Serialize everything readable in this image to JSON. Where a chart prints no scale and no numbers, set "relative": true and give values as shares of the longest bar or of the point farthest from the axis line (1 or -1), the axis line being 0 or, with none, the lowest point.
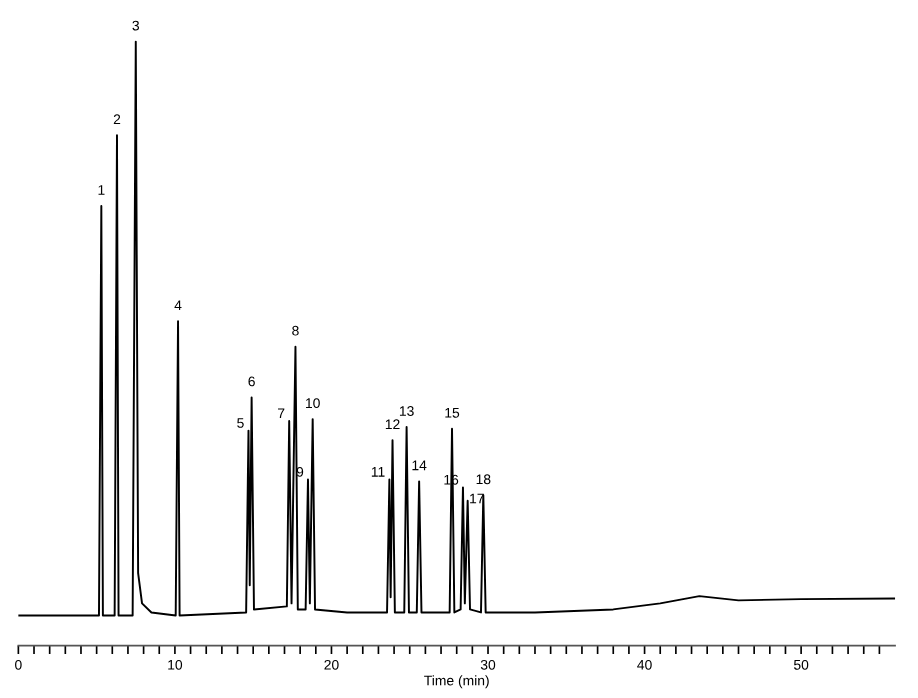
{
  "chart_data": {
    "type": "line",
    "relative": true,
    "xlabel": "Time (min)",
    "xlim": [
      0,
      56
    ],
    "xticks": [
      0,
      {
        "value": 1,
        "label": null
      },
      {
        "value": 2,
        "label": null
      },
      {
        "value": 3,
        "label": null
      },
      {
        "value": 4,
        "label": null
      },
      {
        "value": 5,
        "label": null
      },
      {
        "value": 6,
        "label": null
      },
      {
        "value": 7,
        "label": null
      },
      {
        "value": 8,
        "label": null
      },
      {
        "value": 9,
        "label": null
      },
      10,
      {
        "value": 11,
        "label": null
      },
      {
        "value": 12,
        "label": null
      },
      {
        "value": 13,
        "label": null
      },
      {
        "value": 14,
        "label": null
      },
      {
        "value": 15,
        "label": null
      },
      {
        "value": 16,
        "label": null
      },
      {
        "value": 17,
        "label": null
      },
      {
        "value": 18,
        "label": null
      },
      {
        "value": 19,
        "label": null
      },
      20,
      {
        "value": 21,
        "label": null
      },
      {
        "value": 22,
        "label": null
      },
      {
        "value": 23,
        "label": null
      },
      {
        "value": 24,
        "label": null
      },
      {
        "value": 25,
        "label": null
      },
      {
        "value": 26,
        "label": null
      },
      {
        "value": 27,
        "label": null
      },
      {
        "value": 28,
        "label": null
      },
      {
        "value": 29,
        "label": null
      },
      30,
      {
        "value": 31,
        "label": null
      },
      {
        "value": 32,
        "label": null
      },
      {
        "value": 33,
        "label": null
      },
      {
        "value": 34,
        "label": null
      },
      {
        "value": 35,
        "label": null
      },
      {
        "value": 36,
        "label": null
      },
      {
        "value": 37,
        "label": null
      },
      {
        "value": 38,
        "label": null
      },
      {
        "value": 39,
        "label": null
      },
      40,
      {
        "value": 41,
        "label": null
      },
      {
        "value": 42,
        "label": null
      },
      {
        "value": 43,
        "label": null
      },
      {
        "value": 44,
        "label": null
      },
      {
        "value": 45,
        "label": null
      },
      {
        "value": 46,
        "label": null
      },
      {
        "value": 47,
        "label": null
      },
      {
        "value": 48,
        "label": null
      },
      {
        "value": 49,
        "label": null
      },
      50,
      {
        "value": 51,
        "label": null
      },
      {
        "value": 52,
        "label": null
      },
      {
        "value": 53,
        "label": null
      },
      {
        "value": 54,
        "label": null
      },
      {
        "value": 55,
        "label": null
      }
    ],
    "grid": false,
    "legend": false,
    "marker": "none",
    "line_style": "solid",
    "series": [
      {
        "color": "#000000",
        "x": [
          0,
          5.15,
          5.3,
          5.4,
          6.15,
          6.3,
          6.4,
          7.3,
          7.5,
          7.65,
          7.9,
          8.5,
          10.05,
          10.2,
          10.3,
          14.55,
          14.7,
          14.78,
          14.9,
          15.05,
          17.15,
          17.3,
          17.45,
          17.7,
          17.85,
          18.35,
          18.5,
          18.62,
          18.8,
          18.95,
          21,
          23.55,
          23.7,
          23.78,
          23.9,
          24.05,
          24.65,
          24.8,
          24.95,
          25.45,
          25.6,
          25.75,
          27.55,
          27.7,
          27.85,
          28.25,
          28.4,
          28.52,
          28.7,
          28.85,
          29.55,
          29.7,
          29.85,
          33,
          38,
          41,
          43.5,
          46,
          50,
          56
        ],
        "values": [
          0.05,
          0.05,
          0.728,
          0.05,
          0.05,
          0.845,
          0.05,
          0.05,
          1.0,
          0.12,
          0.07,
          0.055,
          0.05,
          0.537,
          0.05,
          0.055,
          0.356,
          0.1,
          0.411,
          0.06,
          0.065,
          0.372,
          0.07,
          0.495,
          0.06,
          0.06,
          0.275,
          0.07,
          0.375,
          0.06,
          0.055,
          0.055,
          0.275,
          0.08,
          0.34,
          0.055,
          0.055,
          0.362,
          0.055,
          0.055,
          0.272,
          0.055,
          0.055,
          0.359,
          0.055,
          0.06,
          0.262,
          0.07,
          0.24,
          0.06,
          0.055,
          0.249,
          0.055,
          0.055,
          0.06,
          0.07,
          0.082,
          0.075,
          0.077,
          0.078
        ]
      }
    ],
    "annotations": [
      {
        "text": "1",
        "x": 5.3,
        "y": 0.728
      },
      {
        "text": "2",
        "x": 6.3,
        "y": 0.845
      },
      {
        "text": "3",
        "x": 7.5,
        "y": 1.0
      },
      {
        "text": "4",
        "x": 10.2,
        "y": 0.537
      },
      {
        "text": "5",
        "x": 14.7,
        "y": 0.356
      },
      {
        "text": "6",
        "x": 14.9,
        "y": 0.411
      },
      {
        "text": "7",
        "x": 17.3,
        "y": 0.372
      },
      {
        "text": "8",
        "x": 17.7,
        "y": 0.495
      },
      {
        "text": "9",
        "x": 18.5,
        "y": 0.275
      },
      {
        "text": "10",
        "x": 18.8,
        "y": 0.375
      },
      {
        "text": "11",
        "x": 23.7,
        "y": 0.275
      },
      {
        "text": "12",
        "x": 23.9,
        "y": 0.34
      },
      {
        "text": "13",
        "x": 24.8,
        "y": 0.362
      },
      {
        "text": "14",
        "x": 25.6,
        "y": 0.272
      },
      {
        "text": "15",
        "x": 27.7,
        "y": 0.359
      },
      {
        "text": "16",
        "x": 28.4,
        "y": 0.262
      },
      {
        "text": "17",
        "x": 28.7,
        "y": 0.24
      },
      {
        "text": "18",
        "x": 29.7,
        "y": 0.249
      }
    ]
  }
}
